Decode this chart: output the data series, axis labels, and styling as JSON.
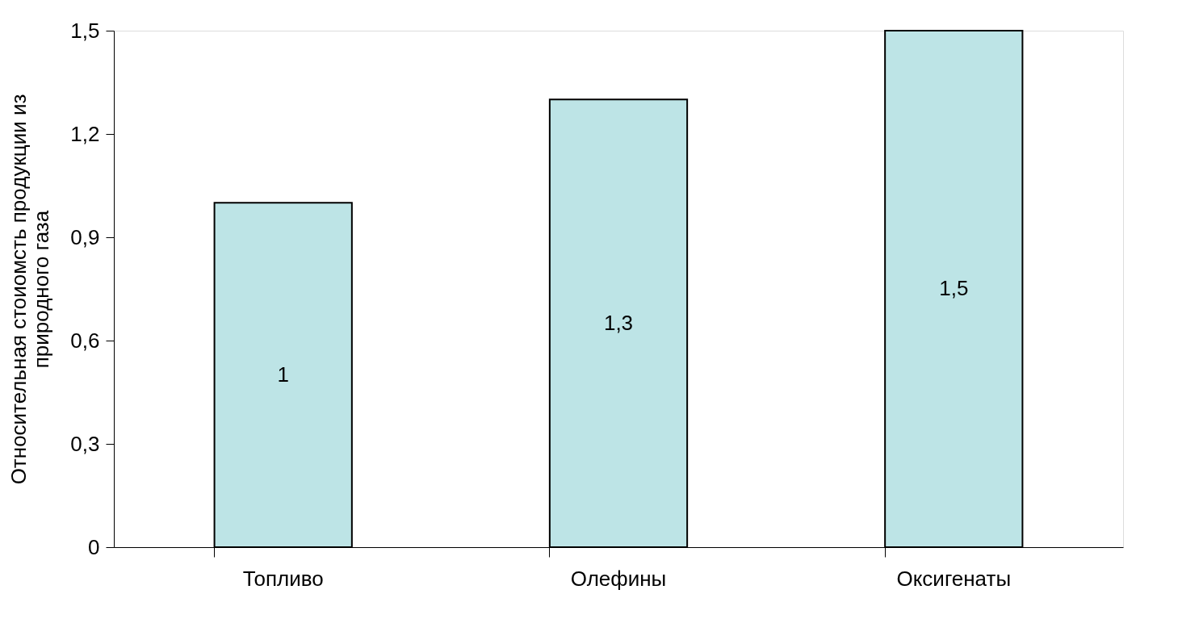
{
  "chart_data": {
    "type": "bar",
    "ylabel": "Относительная стоиомсть продукции из природного газа",
    "categories": [
      "Топливо",
      "Олефины",
      "Оксигенаты"
    ],
    "values": [
      1,
      1.3,
      1.5
    ],
    "value_labels": [
      "1",
      "1,3",
      "1,5"
    ],
    "color": "#bde4e6",
    "ylim": [
      0,
      1.5
    ],
    "yticks": [
      0,
      {
        "value": 0.3,
        "label": "0,3"
      },
      {
        "value": 0.6,
        "label": "0,6"
      },
      {
        "value": 0.9,
        "label": "0,9"
      },
      {
        "value": 1.2,
        "label": "1,2"
      },
      {
        "value": 1.5,
        "label": "1,5"
      }
    ],
    "grid": false
  }
}
